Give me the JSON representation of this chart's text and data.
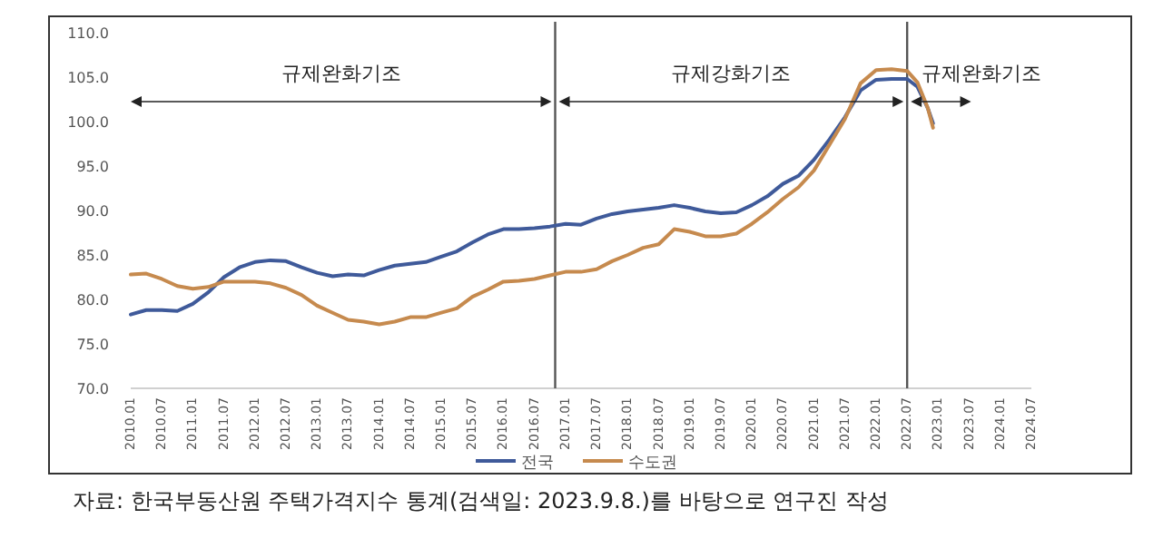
{
  "chart_data": {
    "type": "line",
    "legend": "bottom",
    "x": [
      "2010-01",
      "2010-04",
      "2010-07",
      "2010-10",
      "2011-01",
      "2011-04",
      "2011-07",
      "2011-10",
      "2012-01",
      "2012-04",
      "2012-07",
      "2012-10",
      "2013-01",
      "2013-04",
      "2013-07",
      "2013-10",
      "2014-01",
      "2014-04",
      "2014-07",
      "2014-10",
      "2015-01",
      "2015-04",
      "2015-07",
      "2015-10",
      "2016-01",
      "2016-04",
      "2016-07",
      "2016-10",
      "2017-01",
      "2017-04",
      "2017-07",
      "2017-10",
      "2018-01",
      "2018-04",
      "2018-07",
      "2018-10",
      "2019-01",
      "2019-04",
      "2019-07",
      "2019-10",
      "2020-01",
      "2020-04",
      "2020-07",
      "2020-10",
      "2021-01",
      "2021-04",
      "2021-07",
      "2021-10",
      "2022-01",
      "2022-04",
      "2022-07",
      "2022-09",
      "2022-11",
      "2022-12"
    ],
    "series": [
      {
        "name": "전국",
        "color": "#3f5a9a",
        "values": [
          78.3,
          78.8,
          78.8,
          78.7,
          79.5,
          80.8,
          82.5,
          83.6,
          84.2,
          84.4,
          84.3,
          83.6,
          83.0,
          82.6,
          82.8,
          82.7,
          83.3,
          83.8,
          84.0,
          84.2,
          84.8,
          85.4,
          86.4,
          87.3,
          87.9,
          87.9,
          88.0,
          88.2,
          88.5,
          88.4,
          89.1,
          89.6,
          89.9,
          90.1,
          90.3,
          90.6,
          90.3,
          89.9,
          89.7,
          89.8,
          90.6,
          91.6,
          93.0,
          93.9,
          95.7,
          98.0,
          100.5,
          103.5,
          104.7,
          104.8,
          104.8,
          103.9,
          101.5,
          99.8
        ]
      },
      {
        "name": "수도권",
        "color": "#c68a4e",
        "values": [
          82.8,
          82.9,
          82.3,
          81.5,
          81.2,
          81.4,
          82.0,
          82.0,
          82.0,
          81.8,
          81.3,
          80.5,
          79.3,
          78.5,
          77.7,
          77.5,
          77.2,
          77.5,
          78.0,
          78.0,
          78.5,
          79.0,
          80.3,
          81.1,
          82.0,
          82.1,
          82.3,
          82.7,
          83.1,
          83.1,
          83.4,
          84.3,
          85.0,
          85.8,
          86.2,
          87.9,
          87.6,
          87.1,
          87.1,
          87.4,
          88.5,
          89.8,
          91.3,
          92.6,
          94.5,
          97.4,
          100.3,
          104.3,
          105.8,
          105.9,
          105.7,
          104.4,
          101.5,
          99.3
        ]
      }
    ],
    "xlim": [
      "2010-01",
      "2024-07"
    ],
    "xticks": [
      {
        "value": "2010-01",
        "label": "2010.01"
      },
      {
        "value": "2010-07",
        "label": "2010.07"
      },
      {
        "value": "2011-01",
        "label": "2011.01"
      },
      {
        "value": "2011-07",
        "label": "2011.07"
      },
      {
        "value": "2012-01",
        "label": "2012.01"
      },
      {
        "value": "2012-07",
        "label": "2012.07"
      },
      {
        "value": "2013-01",
        "label": "2013.01"
      },
      {
        "value": "2013-07",
        "label": "2013.07"
      },
      {
        "value": "2014-01",
        "label": "2014.01"
      },
      {
        "value": "2014-07",
        "label": "2014.07"
      },
      {
        "value": "2015-01",
        "label": "2015.01"
      },
      {
        "value": "2015-07",
        "label": "2015.07"
      },
      {
        "value": "2016-01",
        "label": "2016.01"
      },
      {
        "value": "2016-07",
        "label": "2016.07"
      },
      {
        "value": "2017-01",
        "label": "2017.01"
      },
      {
        "value": "2017-07",
        "label": "2017.07"
      },
      {
        "value": "2018-01",
        "label": "2018.01"
      },
      {
        "value": "2018-07",
        "label": "2018.07"
      },
      {
        "value": "2019-01",
        "label": "2019.01"
      },
      {
        "value": "2019-07",
        "label": "2019.07"
      },
      {
        "value": "2020-01",
        "label": "2020.01"
      },
      {
        "value": "2020-07",
        "label": "2020.07"
      },
      {
        "value": "2021-01",
        "label": "2021.01"
      },
      {
        "value": "2021-07",
        "label": "2021.07"
      },
      {
        "value": "2022-01",
        "label": "2022.01"
      },
      {
        "value": "2022-07",
        "label": "2022.07"
      },
      {
        "value": "2023-01",
        "label": "2023.01"
      },
      {
        "value": "2023-07",
        "label": "2023.07"
      },
      {
        "value": "2024-01",
        "label": "2024.01"
      },
      {
        "value": "2024-07",
        "label": "2024.07"
      }
    ],
    "ylim": [
      70,
      110
    ],
    "yticks": [
      {
        "value": 70,
        "label": "70.0"
      },
      {
        "value": 75,
        "label": "75.0"
      },
      {
        "value": 80,
        "label": "80.0"
      },
      {
        "value": 85,
        "label": "85.0"
      },
      {
        "value": 90,
        "label": "90.0"
      },
      {
        "value": 95,
        "label": "95.0"
      },
      {
        "value": 100,
        "label": "100.0"
      },
      {
        "value": 105,
        "label": "105.0"
      },
      {
        "value": 110,
        "label": "110.0"
      }
    ],
    "ref_lines": [
      {
        "axis": "x",
        "value": "2016-11",
        "color": "#555555"
      },
      {
        "axis": "x",
        "value": "2022-07",
        "color": "#555555"
      }
    ],
    "annotations": [
      "규제완화기조",
      "규제강화기조",
      "규제완화기조",
      "자료: 한국부동산원 주택가격지수 통계(검색일: 2023.9.8.)를 바탕으로 연구진 작성"
    ]
  }
}
